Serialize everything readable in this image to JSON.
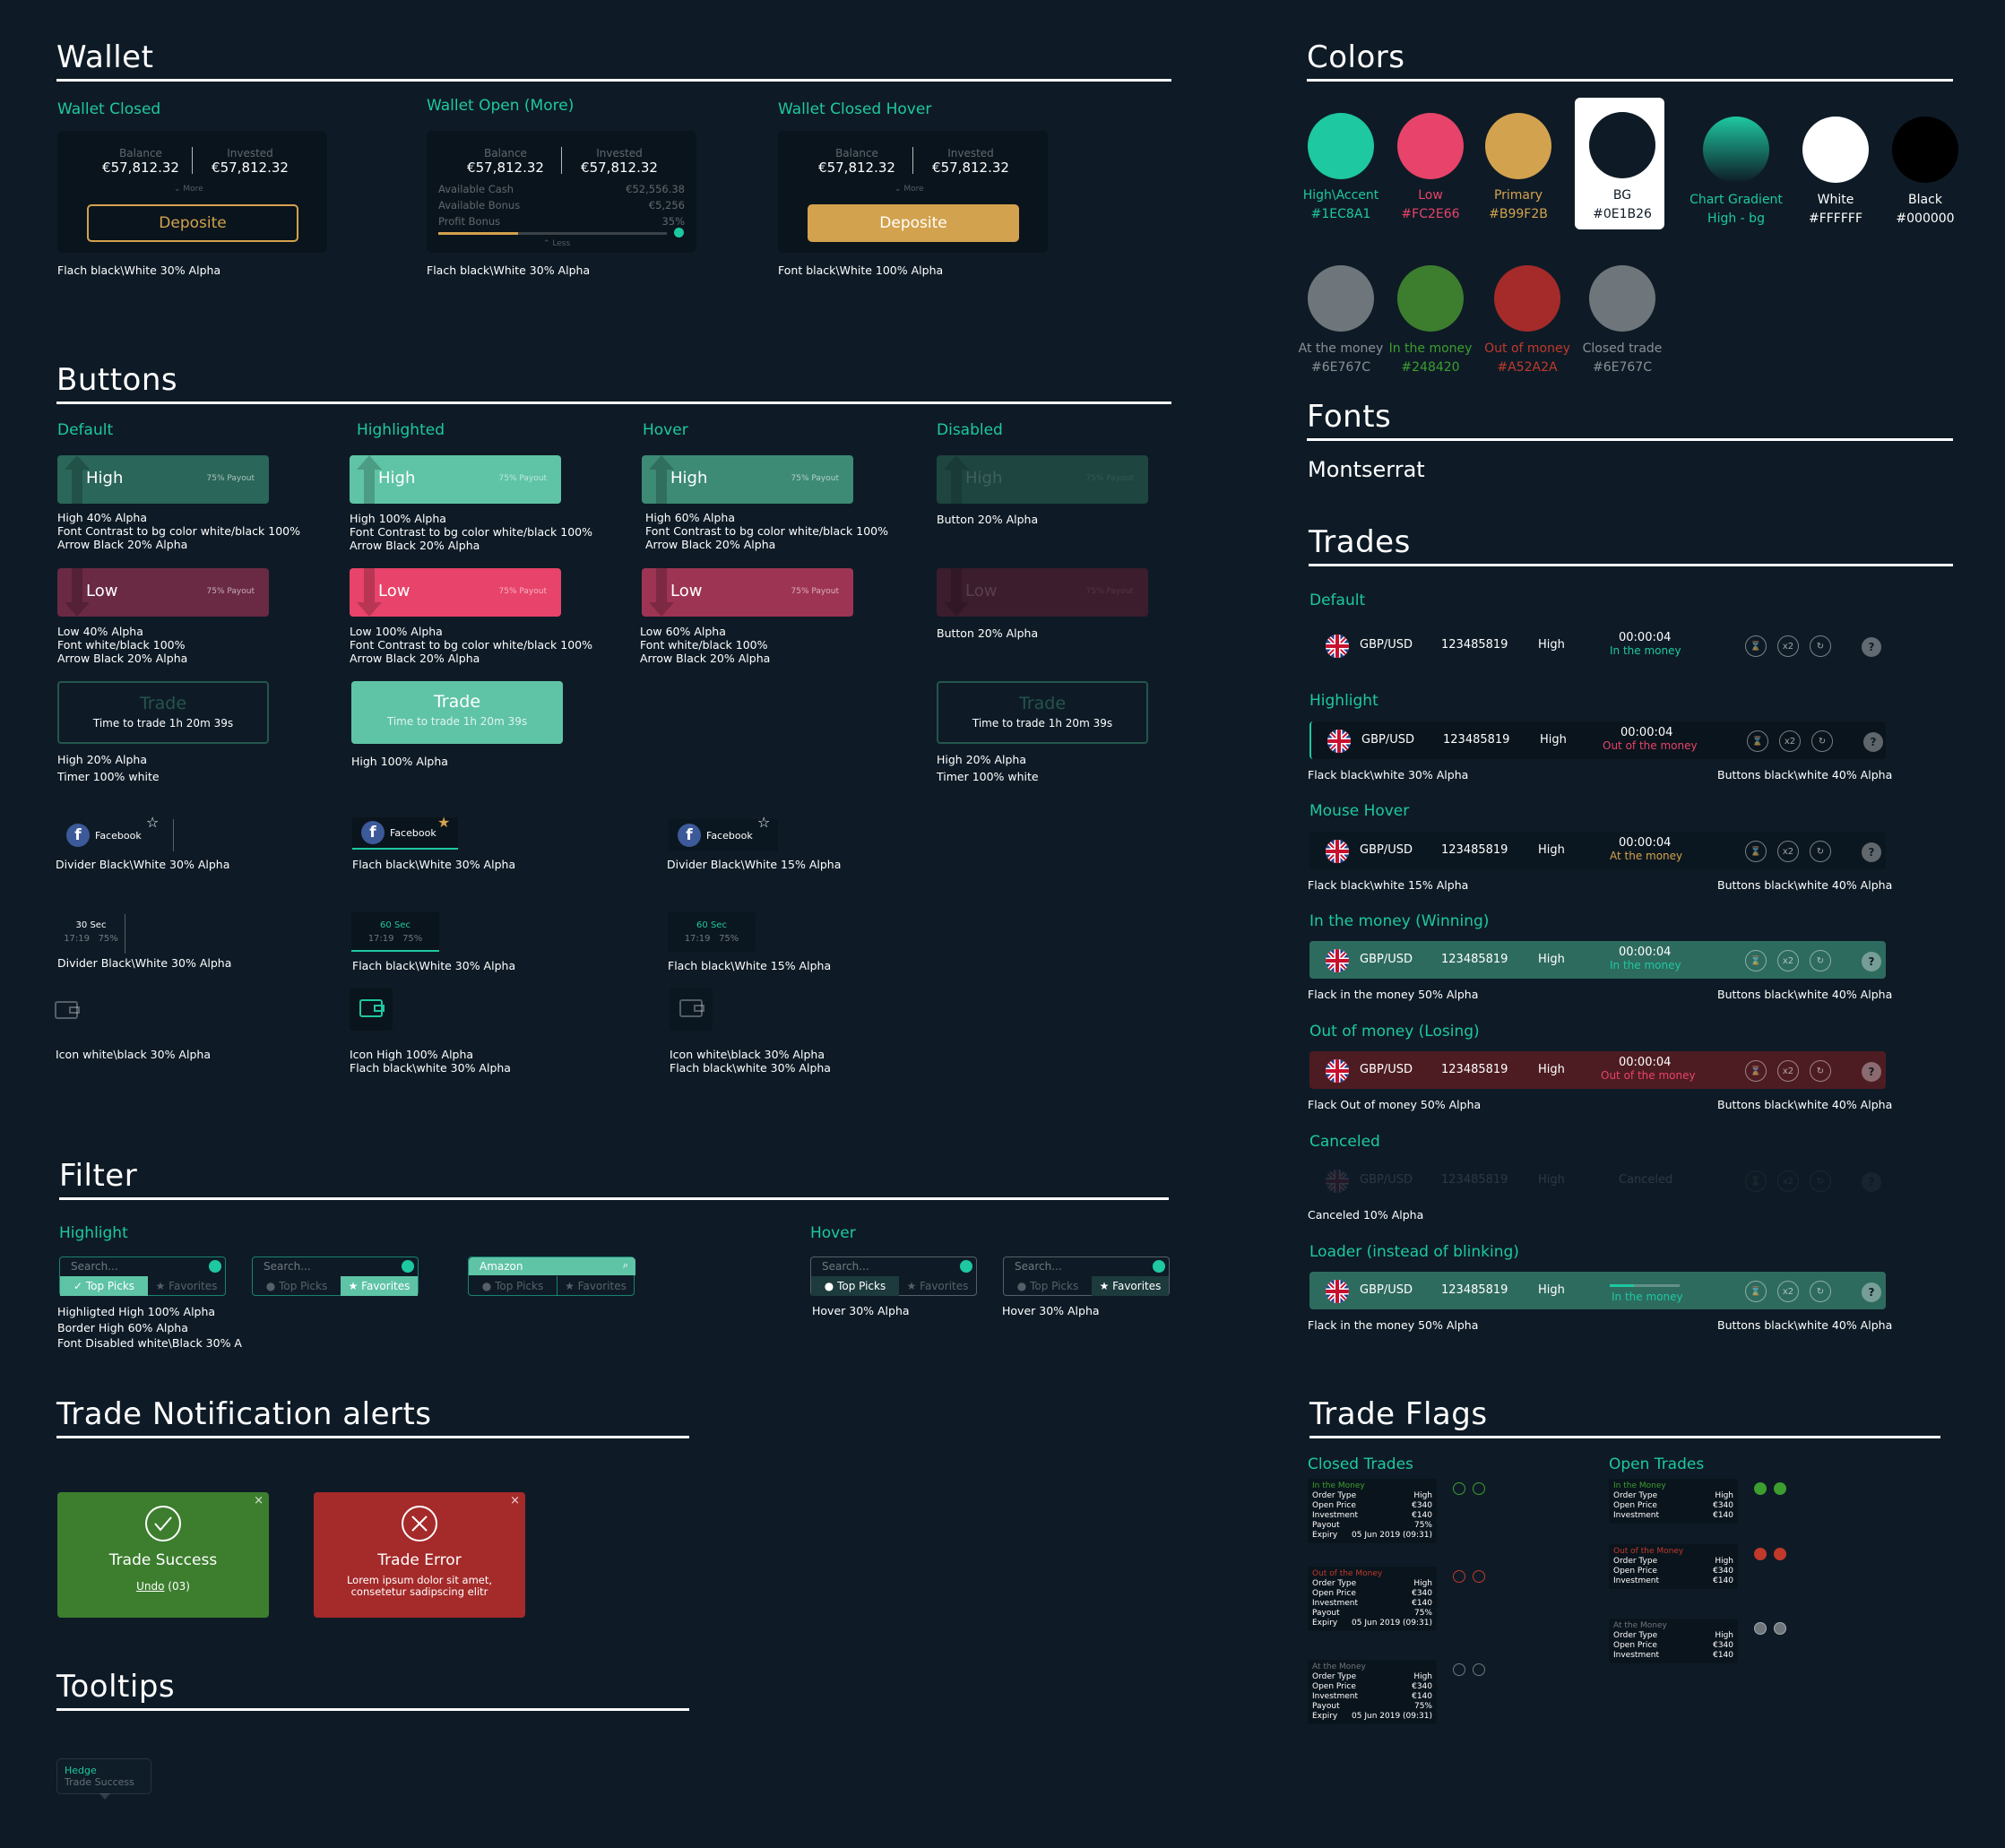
{
  "wallet": {
    "title": "Wallet",
    "closed_label": "Wallet Closed",
    "open_label": "Wallet Open (More)",
    "hover_label": "Wallet Closed Hover",
    "balance_label": "Balance",
    "invested_label": "Invested",
    "balance": "€57,812.32",
    "invested": "€57,812.32",
    "more": "⌄ More",
    "less": "⌃ Less",
    "deposit": "Deposite",
    "cash_label": "Available Cash",
    "cash": "€52,556.38",
    "bonus_label": "Available Bonus",
    "bonus": "€5,256",
    "profit_label": "Profit Bonus",
    "profit": "35%",
    "profit_fill": 0.35,
    "note_closed": "Flach black\\White 30% Alpha",
    "note_open": "Flach black\\White 30% Alpha",
    "note_hover": "Font black\\White 100% Alpha"
  },
  "buttons": {
    "title": "Buttons",
    "default": "Default",
    "highlighted": "Highlighted",
    "hover": "Hover",
    "disabled": "Disabled",
    "high": "High",
    "low": "Low",
    "payout": "75% Payout",
    "trade": "Trade",
    "time_to_trade": "Time to trade 1h 20m 39s",
    "n_high_def": [
      "High 40% Alpha",
      "Font Contrast to bg color white/black 100%",
      "Arrow Black 20% Alpha"
    ],
    "n_high_hl": [
      "High 100% Alpha",
      "Font Contrast to bg color white/black 100%",
      "Arrow Black 20% Alpha"
    ],
    "n_high_hov": [
      "High 60% Alpha",
      "Font Contrast to bg color white/black 100%",
      "Arrow Black 20% Alpha"
    ],
    "n_dis": "Button 20% Alpha",
    "n_low_def": [
      "Low 40% Alpha",
      "Font white/black 100%",
      "Arrow Black 20% Alpha"
    ],
    "n_low_hl": [
      "Low  100% Alpha",
      "Font Contrast to bg color white/black 100%",
      "Arrow Black 20% Alpha"
    ],
    "n_low_hov": [
      "Low 60% Alpha",
      "Font white/black 100%",
      "Arrow Black 20% Alpha"
    ],
    "n_trade_def": [
      "High 20% Alpha",
      "Timer 100% white"
    ],
    "n_trade_hl": "High 100% Alpha",
    "n_trade_dis": [
      "High 20% Alpha",
      "Timer 100% white"
    ],
    "facebook": "Facebook",
    "n_fb_def": "Divider Black\\White 30% Alpha",
    "n_fb_hl": "Flach black\\White 30% Alpha",
    "n_fb_hov": "Divider Black\\White 15% Alpha",
    "t30": "30 Sec",
    "t60": "60 Sec",
    "time": "17:19",
    "pct": "75%",
    "n_t_def": "Divider Black\\White 30% Alpha",
    "n_t_hl": "Flach black\\White 30% Alpha",
    "n_t_hov": "Flach black\\White 15% Alpha",
    "n_i_def": "Icon white\\black 30% Alpha",
    "n_i_hl": [
      "Icon High 100% Alpha",
      "Flach black\\white 30% Alpha"
    ],
    "n_i_hov": [
      "Icon white\\black 30% Alpha",
      "Flach black\\white 30% Alpha"
    ]
  },
  "filter": {
    "title": "Filter",
    "highlight": "Highlight",
    "hover": "Hover",
    "search": "Search...",
    "amazon": "Amazon",
    "top": "Top Picks",
    "fav": "Favorites",
    "notes": [
      "Highligted High 100% Alpha",
      "Border High 60% Alpha",
      "Font Disabled white\\Black 30% A"
    ],
    "hover_note": "Hover 30% Alpha"
  },
  "alerts": {
    "title": "Trade Notification alerts",
    "success": "Trade Success",
    "undo": "Undo",
    "undo_count": " (03)",
    "error": "Trade Error",
    "error_text": [
      "Lorem ipsum dolor sit amet,",
      "consetetur sadipscing elitr"
    ]
  },
  "tooltips": {
    "title": "Tooltips",
    "t1": "Hedge",
    "t2": "Trade Success"
  },
  "colors": {
    "title": "Colors",
    "items": [
      {
        "name": "High\\Accent",
        "hex": "#1EC8A1",
        "color": "#1EC8A1"
      },
      {
        "name": "Low",
        "hex": "#FC2E66",
        "color": "#E8436A"
      },
      {
        "name": "Primary",
        "hex": "#B99F2B",
        "color": "#D3A24E"
      },
      {
        "name": "BG",
        "hex": "#0E1B26",
        "color": "#0E1B26"
      },
      {
        "name": "Chart Gradient",
        "hex": "High - bg",
        "color": "#1EC8A1"
      },
      {
        "name": "White",
        "hex": "#FFFFFF",
        "color": "#FFFFFF"
      },
      {
        "name": "Black",
        "hex": "#000000",
        "color": "#000000"
      },
      {
        "name": "At the money",
        "hex": "#6E767C",
        "color": "#6E767C"
      },
      {
        "name": "In the money",
        "hex": "#248420",
        "color": "#3C7E2E"
      },
      {
        "name": "Out of money",
        "hex": "#A52A2A",
        "color": "#A52A2A"
      },
      {
        "name": "Closed trade",
        "hex": "#6E767C",
        "color": "#6E767C"
      }
    ]
  },
  "fonts": {
    "title": "Fonts",
    "name": "Montserrat"
  },
  "trades": {
    "title": "Trades",
    "pair": "GBP/USD",
    "id": "123485819",
    "dir": "High",
    "time": "00:00:04",
    "in": "In the money",
    "out": "Out of the money",
    "at": "At the money",
    "canceled": "Canceled",
    "x2": "x2",
    "q": "?",
    "s_default": "Default",
    "s_highlight": "Highlight",
    "s_hover": "Mouse Hover",
    "s_win": "In the money (Winning)",
    "s_lose": "Out of money (Losing)",
    "s_cancel": "Canceled",
    "s_loader": "Loader (instead of blinking)",
    "n_hl": "Flack black\\white 30% Alpha",
    "n_hov": "Flack black\\white 15% Alpha",
    "n_win": "Flack in the money 50% Alpha",
    "n_lose": "Flack Out of money 50% Alpha",
    "n_cancel": "Canceled 10% Alpha",
    "n_loader": "Flack in the money 50% Alpha",
    "n_btn": "Buttons black\\white 40% Alpha",
    "loader_progress": 0.35
  },
  "flags": {
    "title": "Trade Flags",
    "closed": "Closed Trades",
    "open": "Open Trades",
    "in": "In the Money",
    "out": "Out of the Money",
    "at": "At the Money",
    "rows": [
      "Order Type",
      "Open Price",
      "Investment",
      "Payout",
      "Expiry"
    ],
    "vals": [
      "High",
      "€340",
      "€140",
      "75%",
      "05 Jun 2019 (09:31)"
    ]
  }
}
